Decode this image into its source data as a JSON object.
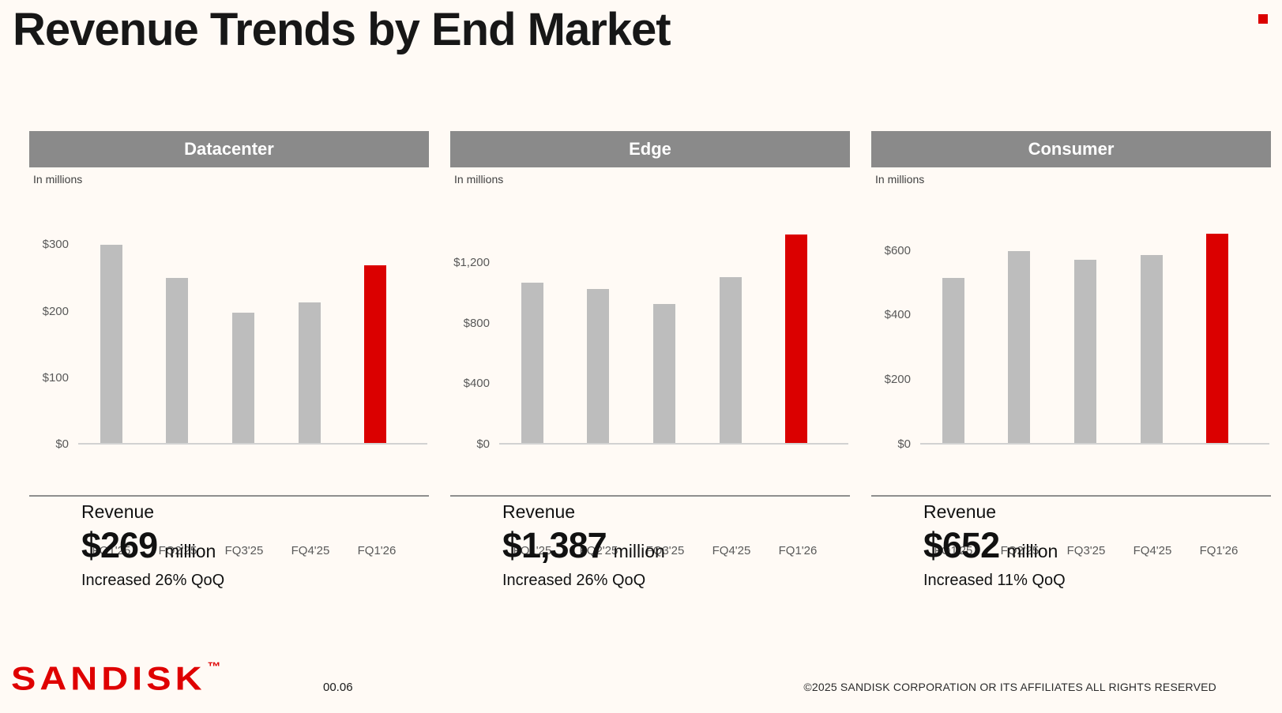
{
  "page": {
    "title": "Revenue Trends by End Market",
    "background_color": "#FFFAF5",
    "accent_red": "#DB0000"
  },
  "panels": [
    {
      "title": "Datacenter",
      "units_label": "In millions",
      "revenue_label": "Revenue",
      "revenue_value": "$269",
      "revenue_unit": "million",
      "change_text": "Increased 26% QoQ"
    },
    {
      "title": "Edge",
      "units_label": "In millions",
      "revenue_label": "Revenue",
      "revenue_value": "$1,387",
      "revenue_unit": "million",
      "change_text": "Increased 26% QoQ"
    },
    {
      "title": "Consumer",
      "units_label": "In millions",
      "revenue_label": "Revenue",
      "revenue_value": "$652",
      "revenue_unit": "million",
      "change_text": "Increased 11% QoQ"
    }
  ],
  "chart_data": [
    {
      "type": "bar",
      "title": "Datacenter",
      "subtitle": "In millions",
      "categories": [
        "FQ1'25",
        "FQ2'25",
        "FQ3'25",
        "FQ4'25",
        "FQ1'26"
      ],
      "values": [
        300,
        250,
        197,
        213,
        269
      ],
      "ylim": [
        0,
        330
      ],
      "yticks": [
        0,
        100,
        200,
        300
      ],
      "ytick_labels": [
        "$0",
        "$100",
        "$200",
        "$300"
      ],
      "grid": false,
      "legend": false,
      "bar_color": "#BDBDBD",
      "highlight_index": 4,
      "highlight_color": "#DB0000"
    },
    {
      "type": "bar",
      "title": "Edge",
      "subtitle": "In millions",
      "categories": [
        "FQ1'25",
        "FQ2'25",
        "FQ3'25",
        "FQ4'25",
        "FQ1'26"
      ],
      "values": [
        1066,
        1026,
        925,
        1101,
        1387
      ],
      "ylim": [
        0,
        1450
      ],
      "yticks": [
        0,
        400,
        800,
        1200
      ],
      "ytick_labels": [
        "$0",
        "$400",
        "$800",
        "$1,200"
      ],
      "grid": false,
      "legend": false,
      "bar_color": "#BDBDBD",
      "highlight_index": 4,
      "highlight_color": "#DB0000"
    },
    {
      "type": "bar",
      "title": "Consumer",
      "subtitle": "In millions",
      "categories": [
        "FQ1'25",
        "FQ2'25",
        "FQ3'25",
        "FQ4'25",
        "FQ1'26"
      ],
      "values": [
        515,
        598,
        572,
        587,
        652
      ],
      "ylim": [
        0,
        680
      ],
      "yticks": [
        0,
        200,
        400,
        600
      ],
      "ytick_labels": [
        "$0",
        "$200",
        "$400",
        "$600"
      ],
      "grid": false,
      "legend": false,
      "bar_color": "#BDBDBD",
      "highlight_index": 4,
      "highlight_color": "#DB0000"
    }
  ],
  "footer": {
    "logo_text": "SANDISK",
    "logo_tm": "™",
    "page_number": "00.06",
    "copyright": "©2025 SANDISK CORPORATION OR ITS AFFILIATES ALL RIGHTS RESERVED"
  }
}
